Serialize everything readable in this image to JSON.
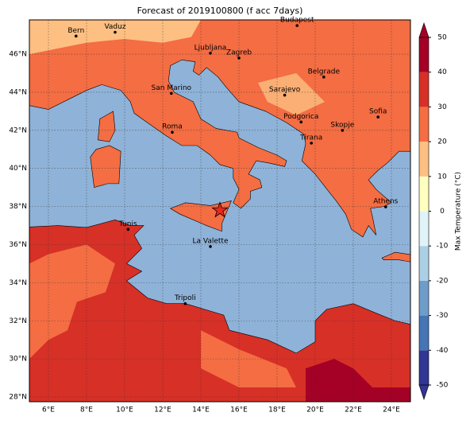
{
  "title": "Forecast of 2019100800 (f acc 7days)",
  "lonlim": [
    5,
    25
  ],
  "latlim": [
    27.75,
    47.8
  ],
  "lon_ticks": [
    {
      "value": 6,
      "label": "6°E"
    },
    {
      "value": 8,
      "label": "8°E"
    },
    {
      "value": 10,
      "label": "10°E"
    },
    {
      "value": 12,
      "label": "12°E"
    },
    {
      "value": 14,
      "label": "14°E"
    },
    {
      "value": 16,
      "label": "16°E"
    },
    {
      "value": 18,
      "label": "18°E"
    },
    {
      "value": 20,
      "label": "20°E"
    },
    {
      "value": 22,
      "label": "22°E"
    },
    {
      "value": 24,
      "label": "24°E"
    }
  ],
  "lat_ticks": [
    {
      "value": 28,
      "label": "28°N"
    },
    {
      "value": 30,
      "label": "30°N"
    },
    {
      "value": 32,
      "label": "32°N"
    },
    {
      "value": 34,
      "label": "34°N"
    },
    {
      "value": 36,
      "label": "36°N"
    },
    {
      "value": 38,
      "label": "38°N"
    },
    {
      "value": 40,
      "label": "40°N"
    },
    {
      "value": 42,
      "label": "42°N"
    },
    {
      "value": 44,
      "label": "44°N"
    },
    {
      "value": 46,
      "label": "46°N"
    }
  ],
  "cities": [
    "Bern",
    "Vaduz",
    "Budapest",
    "Ljubljana",
    "Zagreb",
    "Belgrade",
    "San Marino",
    "Sarajevo",
    "Sofia",
    "Podgorica",
    "Skopje",
    "Roma",
    "Tirana",
    "Athens",
    "Tunis",
    "La Valette",
    "Tripoli"
  ],
  "colorbar": {
    "label": "Max Temperature (°C)",
    "ticks": [
      -50,
      -40,
      -30,
      -20,
      -10,
      0,
      10,
      20,
      30,
      40,
      50
    ],
    "colors": [
      "#313695",
      "#4575b4",
      "#6f9dca",
      "#abd0e6",
      "#e0f3f8",
      "#ffffbf",
      "#fdbf82",
      "#f46d43",
      "#d73027",
      "#a50026"
    ]
  }
}
